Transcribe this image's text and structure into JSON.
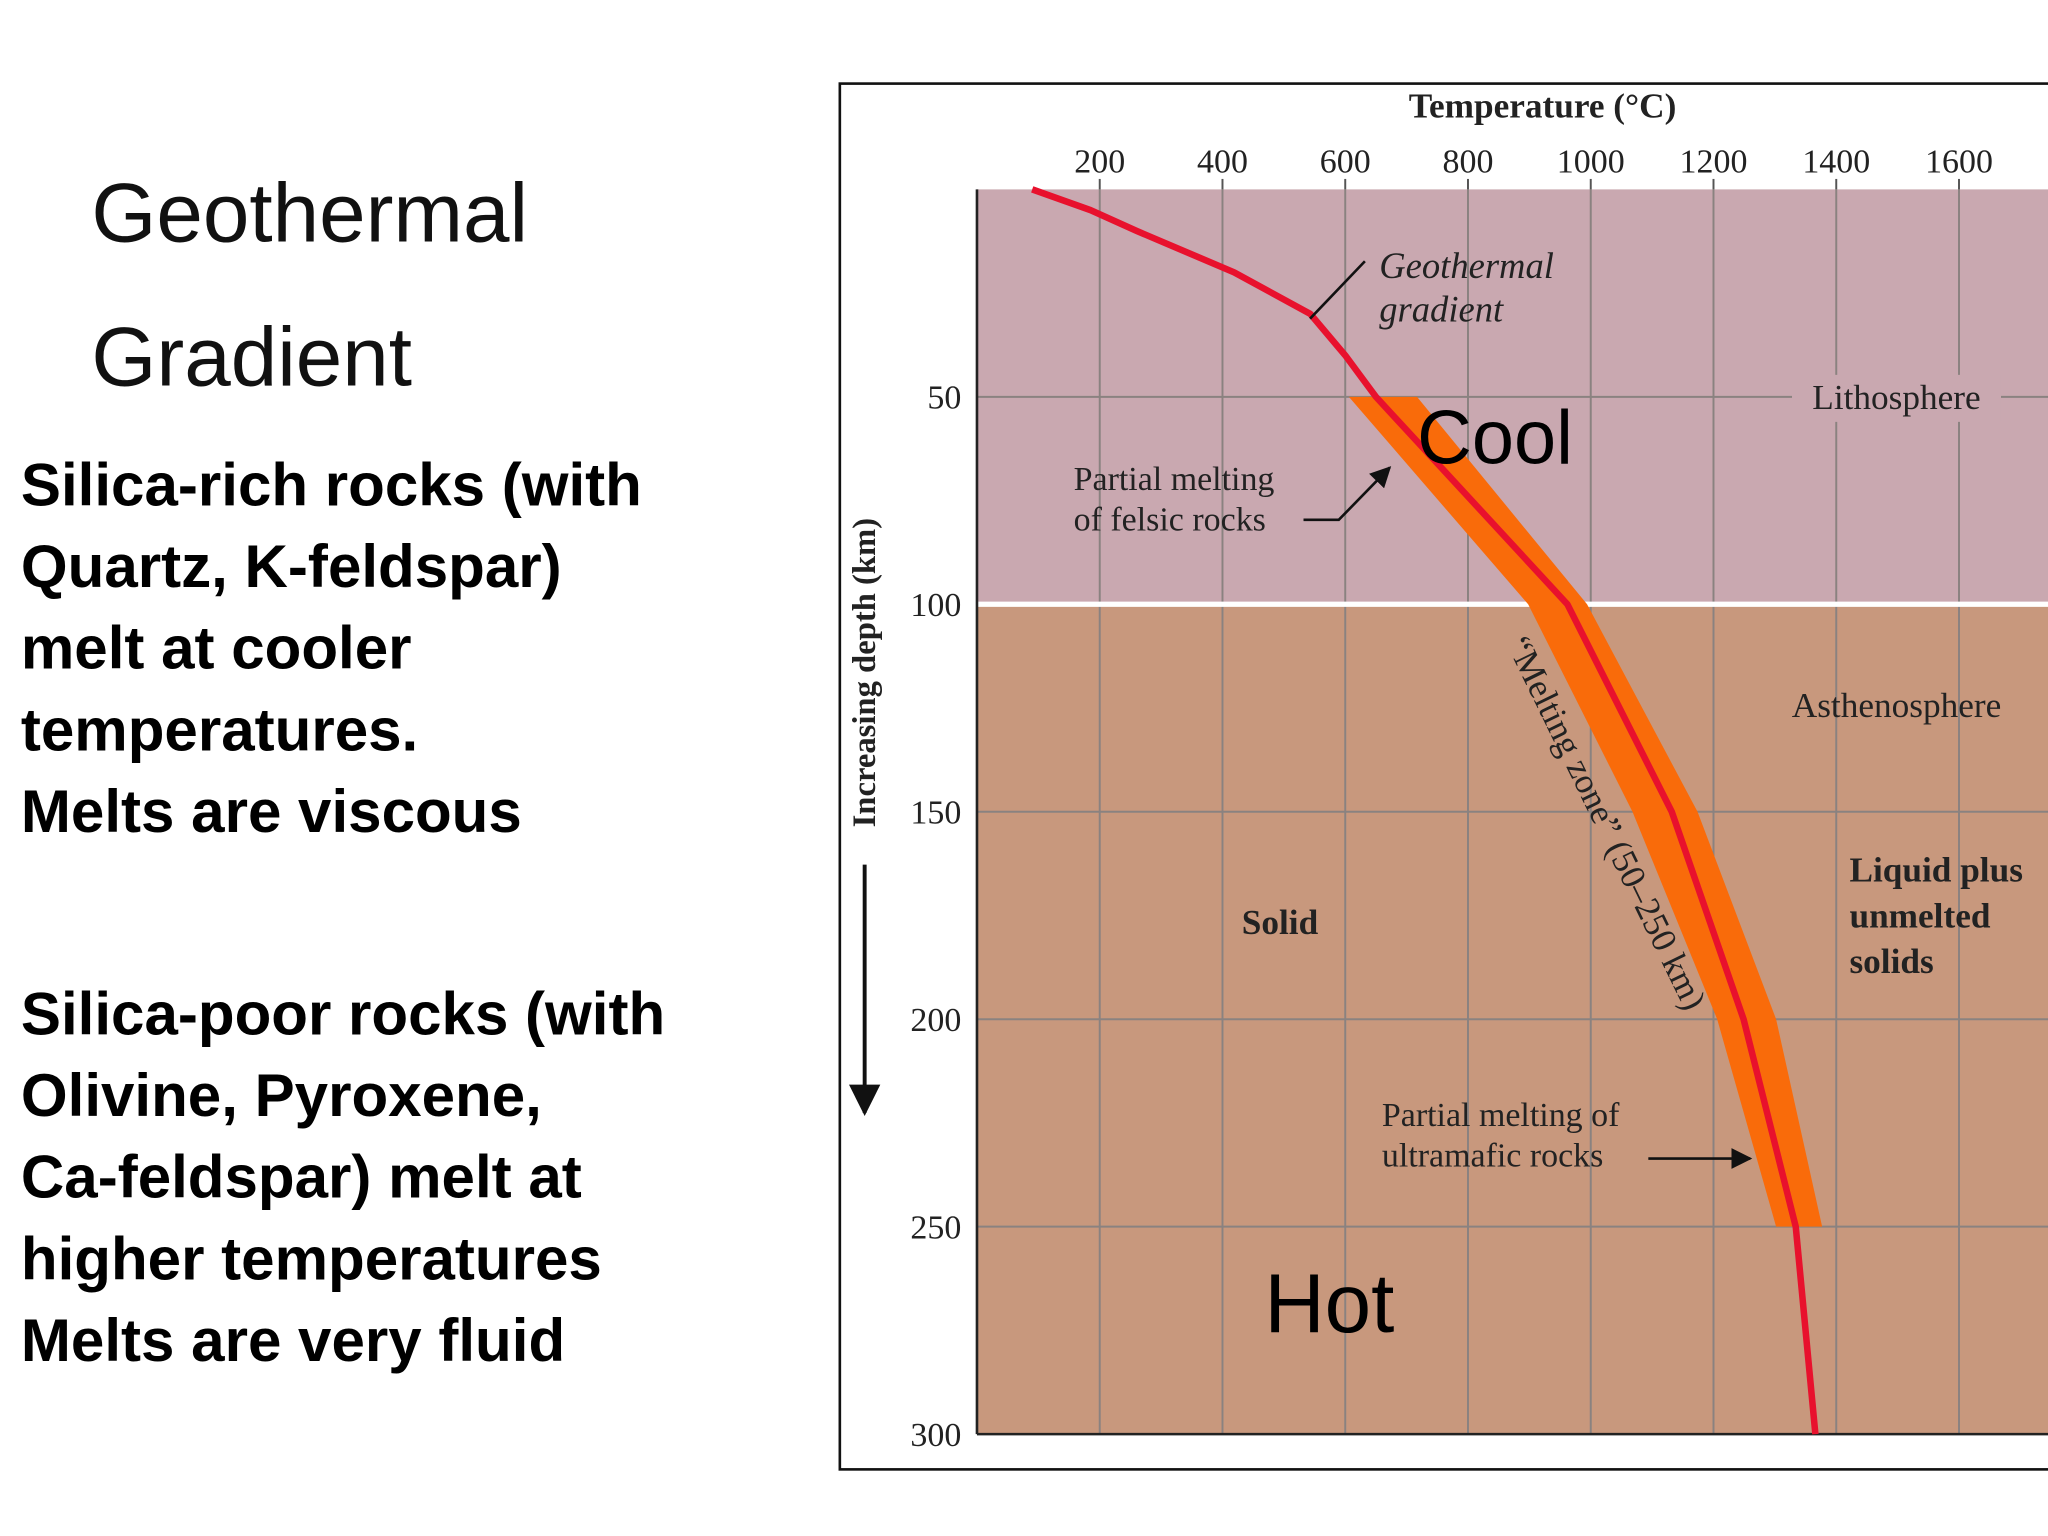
{
  "slide": {
    "title_lines": [
      "Geothermal",
      "Gradient"
    ],
    "paragraphs": [
      [
        "Silica-rich rocks (with",
        "Quartz, K-feldspar)",
        "melt at cooler",
        "temperatures.",
        "Melts are viscous"
      ],
      [
        "Silica-poor rocks (with",
        "Olivine, Pyroxene,",
        "Ca-feldspar) melt at",
        "higher temperatures",
        "Melts are very fluid"
      ]
    ]
  },
  "chart_data": {
    "type": "line",
    "xlabel": "Temperature (°C)",
    "ylabel": "Increasing depth (km)",
    "xlim": [
      0,
      1745
    ],
    "ylim": [
      0,
      300
    ],
    "xticks": [
      200,
      400,
      600,
      800,
      1000,
      1200,
      1400,
      1600
    ],
    "yticks": [
      50,
      100,
      150,
      200,
      250,
      300
    ],
    "grid": true,
    "regions": [
      {
        "label": "Lithosphere",
        "from": 0,
        "to": 100,
        "color": "#c9a8b0"
      },
      {
        "label": "Asthenosphere",
        "from": 100,
        "to": 300,
        "color": "#c8987d"
      }
    ],
    "series": [
      {
        "color": "#e8112d",
        "x": [
          90,
          185,
          260,
          419,
          543,
          600,
          650,
          962,
          1132,
          1249,
          1334,
          1366
        ],
        "values": [
          0,
          5,
          10,
          20,
          30,
          40,
          50,
          100,
          150,
          200,
          250,
          300
        ]
      }
    ],
    "melting_zone": {
      "color": "#f96b0a",
      "depth": [
        50,
        100,
        150,
        200,
        250
      ],
      "min_temp": [
        606,
        898,
        1068,
        1206,
        1302
      ],
      "max_temp": [
        717,
        994,
        1174,
        1302,
        1377
      ]
    },
    "annotations": {
      "geothermal_gradient": [
        "Geothermal",
        "gradient"
      ],
      "cool": "Cool",
      "felsic": [
        "Partial melting",
        "of felsic rocks"
      ],
      "melting_zone": "“Melting zone” (50–250 km)",
      "solid": "Solid",
      "liquid": [
        "Liquid plus",
        "unmelted",
        "solids"
      ],
      "ultramafic": [
        "Partial melting of",
        "ultramafic rocks"
      ],
      "hot": "Hot"
    }
  }
}
